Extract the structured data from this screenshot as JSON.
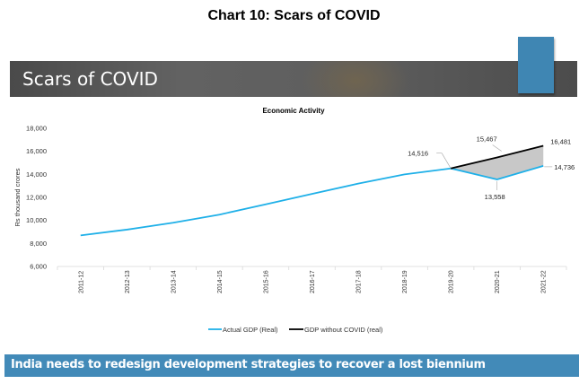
{
  "page": {
    "chart_title": "Chart 10: Scars of COVID",
    "banner_title": "Scars of COVID",
    "footer_text": "India needs to redesign development strategies to recover a lost biennium",
    "colors": {
      "actual": "#1fb0e8",
      "without_covid": "#000000",
      "gap_fill": "#c8c8c8",
      "banner_accent": "#3f86b3",
      "footer_bg": "#428ab8"
    }
  },
  "chart_data": {
    "type": "line",
    "title": "Economic Activity",
    "xlabel": "",
    "ylabel": "Rs thousand crores",
    "ylim": [
      6000,
      18000
    ],
    "yticks": [
      6000,
      8000,
      10000,
      12000,
      14000,
      16000,
      18000
    ],
    "ytick_labels": [
      "6,000",
      "8,000",
      "10,000",
      "12,000",
      "14,000",
      "16,000",
      "18,000"
    ],
    "categories": [
      "2011-12",
      "2012-13",
      "2013-14",
      "2014-15",
      "2015-16",
      "2016-17",
      "2017-18",
      "2018-19",
      "2019-20",
      "2020-21",
      "2021-22"
    ],
    "series": [
      {
        "name": "Actual GDP (Real)",
        "values": [
          8700,
          9200,
          9800,
          10500,
          11400,
          12300,
          13200,
          14000,
          14516,
          13558,
          14736
        ]
      },
      {
        "name": "GDP without COVID (real)",
        "values": [
          null,
          null,
          null,
          null,
          null,
          null,
          null,
          null,
          14516,
          15467,
          16481
        ]
      }
    ],
    "shaded_gap": {
      "between": [
        "GDP without COVID (real)",
        "Actual GDP (Real)"
      ],
      "from": "2019-20",
      "to": "2021-22"
    },
    "data_labels": [
      {
        "category": "2019-20",
        "text": "14,516"
      },
      {
        "category": "2020-21",
        "text": "15,467"
      },
      {
        "category": "2021-22",
        "text": "16,481"
      },
      {
        "category": "2020-21",
        "text": "13,558"
      },
      {
        "category": "2021-22",
        "text": "14,736"
      }
    ],
    "grid": false,
    "legend": "bottom"
  }
}
